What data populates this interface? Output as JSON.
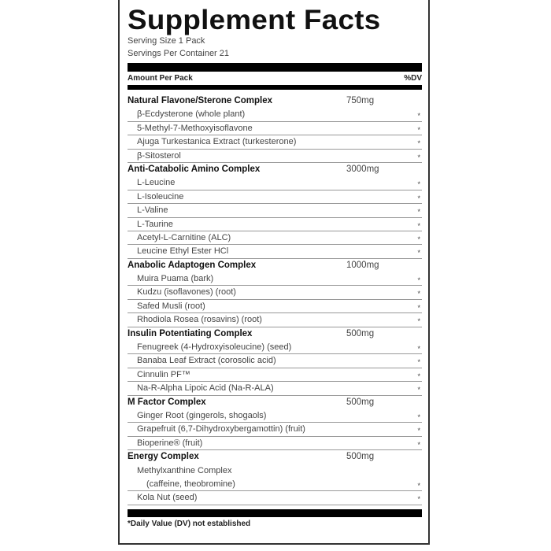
{
  "title": "Supplement Facts",
  "serving_size": "Serving Size 1 Pack",
  "servings_per_container": "Servings Per Container 21",
  "amount_header": "Amount Per Pack",
  "dv_header": "%DV",
  "sections": [
    {
      "name": "Natural Flavone/Sterone Complex",
      "amount": "750mg",
      "items": [
        {
          "name": "β-Ecdysterone (whole plant)",
          "dv": "*"
        },
        {
          "name": "5-Methyl-7-Methoxyisoflavone",
          "dv": "*"
        },
        {
          "name": "Ajuga Turkestanica Extract (turkesterone)",
          "dv": "*"
        },
        {
          "name": "β-Sitosterol",
          "dv": "*"
        }
      ]
    },
    {
      "name": "Anti-Catabolic Amino Complex",
      "amount": "3000mg",
      "items": [
        {
          "name": "L-Leucine",
          "dv": "*"
        },
        {
          "name": "L-Isoleucine",
          "dv": "*"
        },
        {
          "name": "L-Valine",
          "dv": "*"
        },
        {
          "name": "L-Taurine",
          "dv": "*"
        },
        {
          "name": "Acetyl-L-Carnitine (ALC)",
          "dv": "*"
        },
        {
          "name": "Leucine Ethyl Ester HCl",
          "dv": "*"
        }
      ]
    },
    {
      "name": "Anabolic Adaptogen Complex",
      "amount": "1000mg",
      "items": [
        {
          "name": "Muira Puama (bark)",
          "dv": "*"
        },
        {
          "name": "Kudzu (isoflavones) (root)",
          "dv": "*"
        },
        {
          "name": "Safed Musli (root)",
          "dv": "*"
        },
        {
          "name": "Rhodiola Rosea (rosavins) (root)",
          "dv": "*"
        }
      ]
    },
    {
      "name": "Insulin Potentiating Complex",
      "amount": "500mg",
      "items": [
        {
          "name": "Fenugreek (4-Hydroxyisoleucine) (seed)",
          "dv": "*"
        },
        {
          "name": "Banaba Leaf Extract (corosolic acid)",
          "dv": "*"
        },
        {
          "name": "Cinnulin PF™",
          "dv": "*"
        },
        {
          "name": "Na-R-Alpha Lipoic Acid (Na-R-ALA)",
          "dv": "*"
        }
      ]
    },
    {
      "name": "M Factor Complex",
      "amount": "500mg",
      "items": [
        {
          "name": "Ginger Root (gingerols, shogaols)",
          "dv": "*"
        },
        {
          "name": "Grapefruit (6,7-Dihydroxybergamottin) (fruit)",
          "dv": "*"
        },
        {
          "name": "Bioperine® (fruit)",
          "dv": "*"
        }
      ]
    },
    {
      "name": "Energy Complex",
      "amount": "500mg",
      "items": [
        {
          "name": "Methylxanthine Complex",
          "sub": "(caffeine, theobromine)",
          "dv": "*"
        },
        {
          "name": "Kola Nut (seed)",
          "dv": "*"
        }
      ]
    }
  ],
  "footnote": "*Daily Value (DV) not established"
}
